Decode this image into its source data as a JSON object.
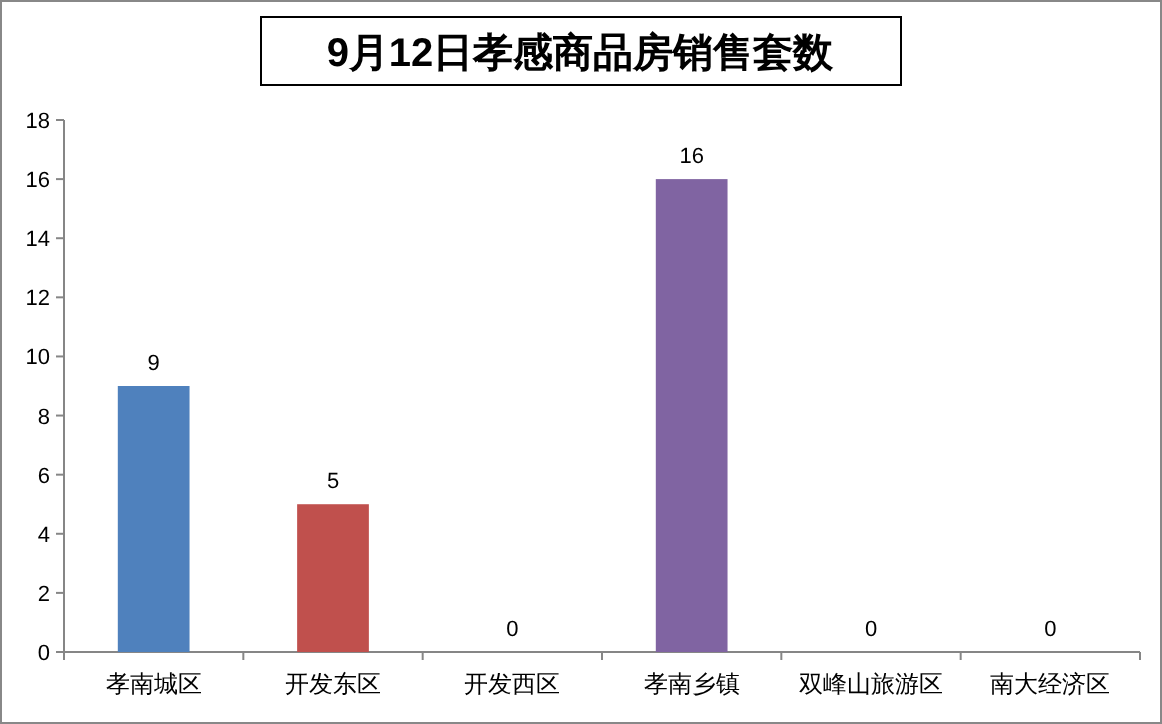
{
  "chart_data": {
    "type": "bar",
    "title": "9月12日孝感商品房销售套数",
    "categories": [
      "孝南城区",
      "开发东区",
      "开发西区",
      "孝南乡镇",
      "双峰山旅游区",
      "南大经济区"
    ],
    "values": [
      9,
      5,
      0,
      16,
      0,
      0
    ],
    "colors": [
      "#4f81bd",
      "#c0504d",
      "#9bbb59",
      "#8064a2",
      "#4bacc6",
      "#f79646"
    ],
    "ylim": [
      0,
      18
    ],
    "yticks": [
      0,
      2,
      4,
      6,
      8,
      10,
      12,
      14,
      16,
      18
    ],
    "data_labels": true
  }
}
